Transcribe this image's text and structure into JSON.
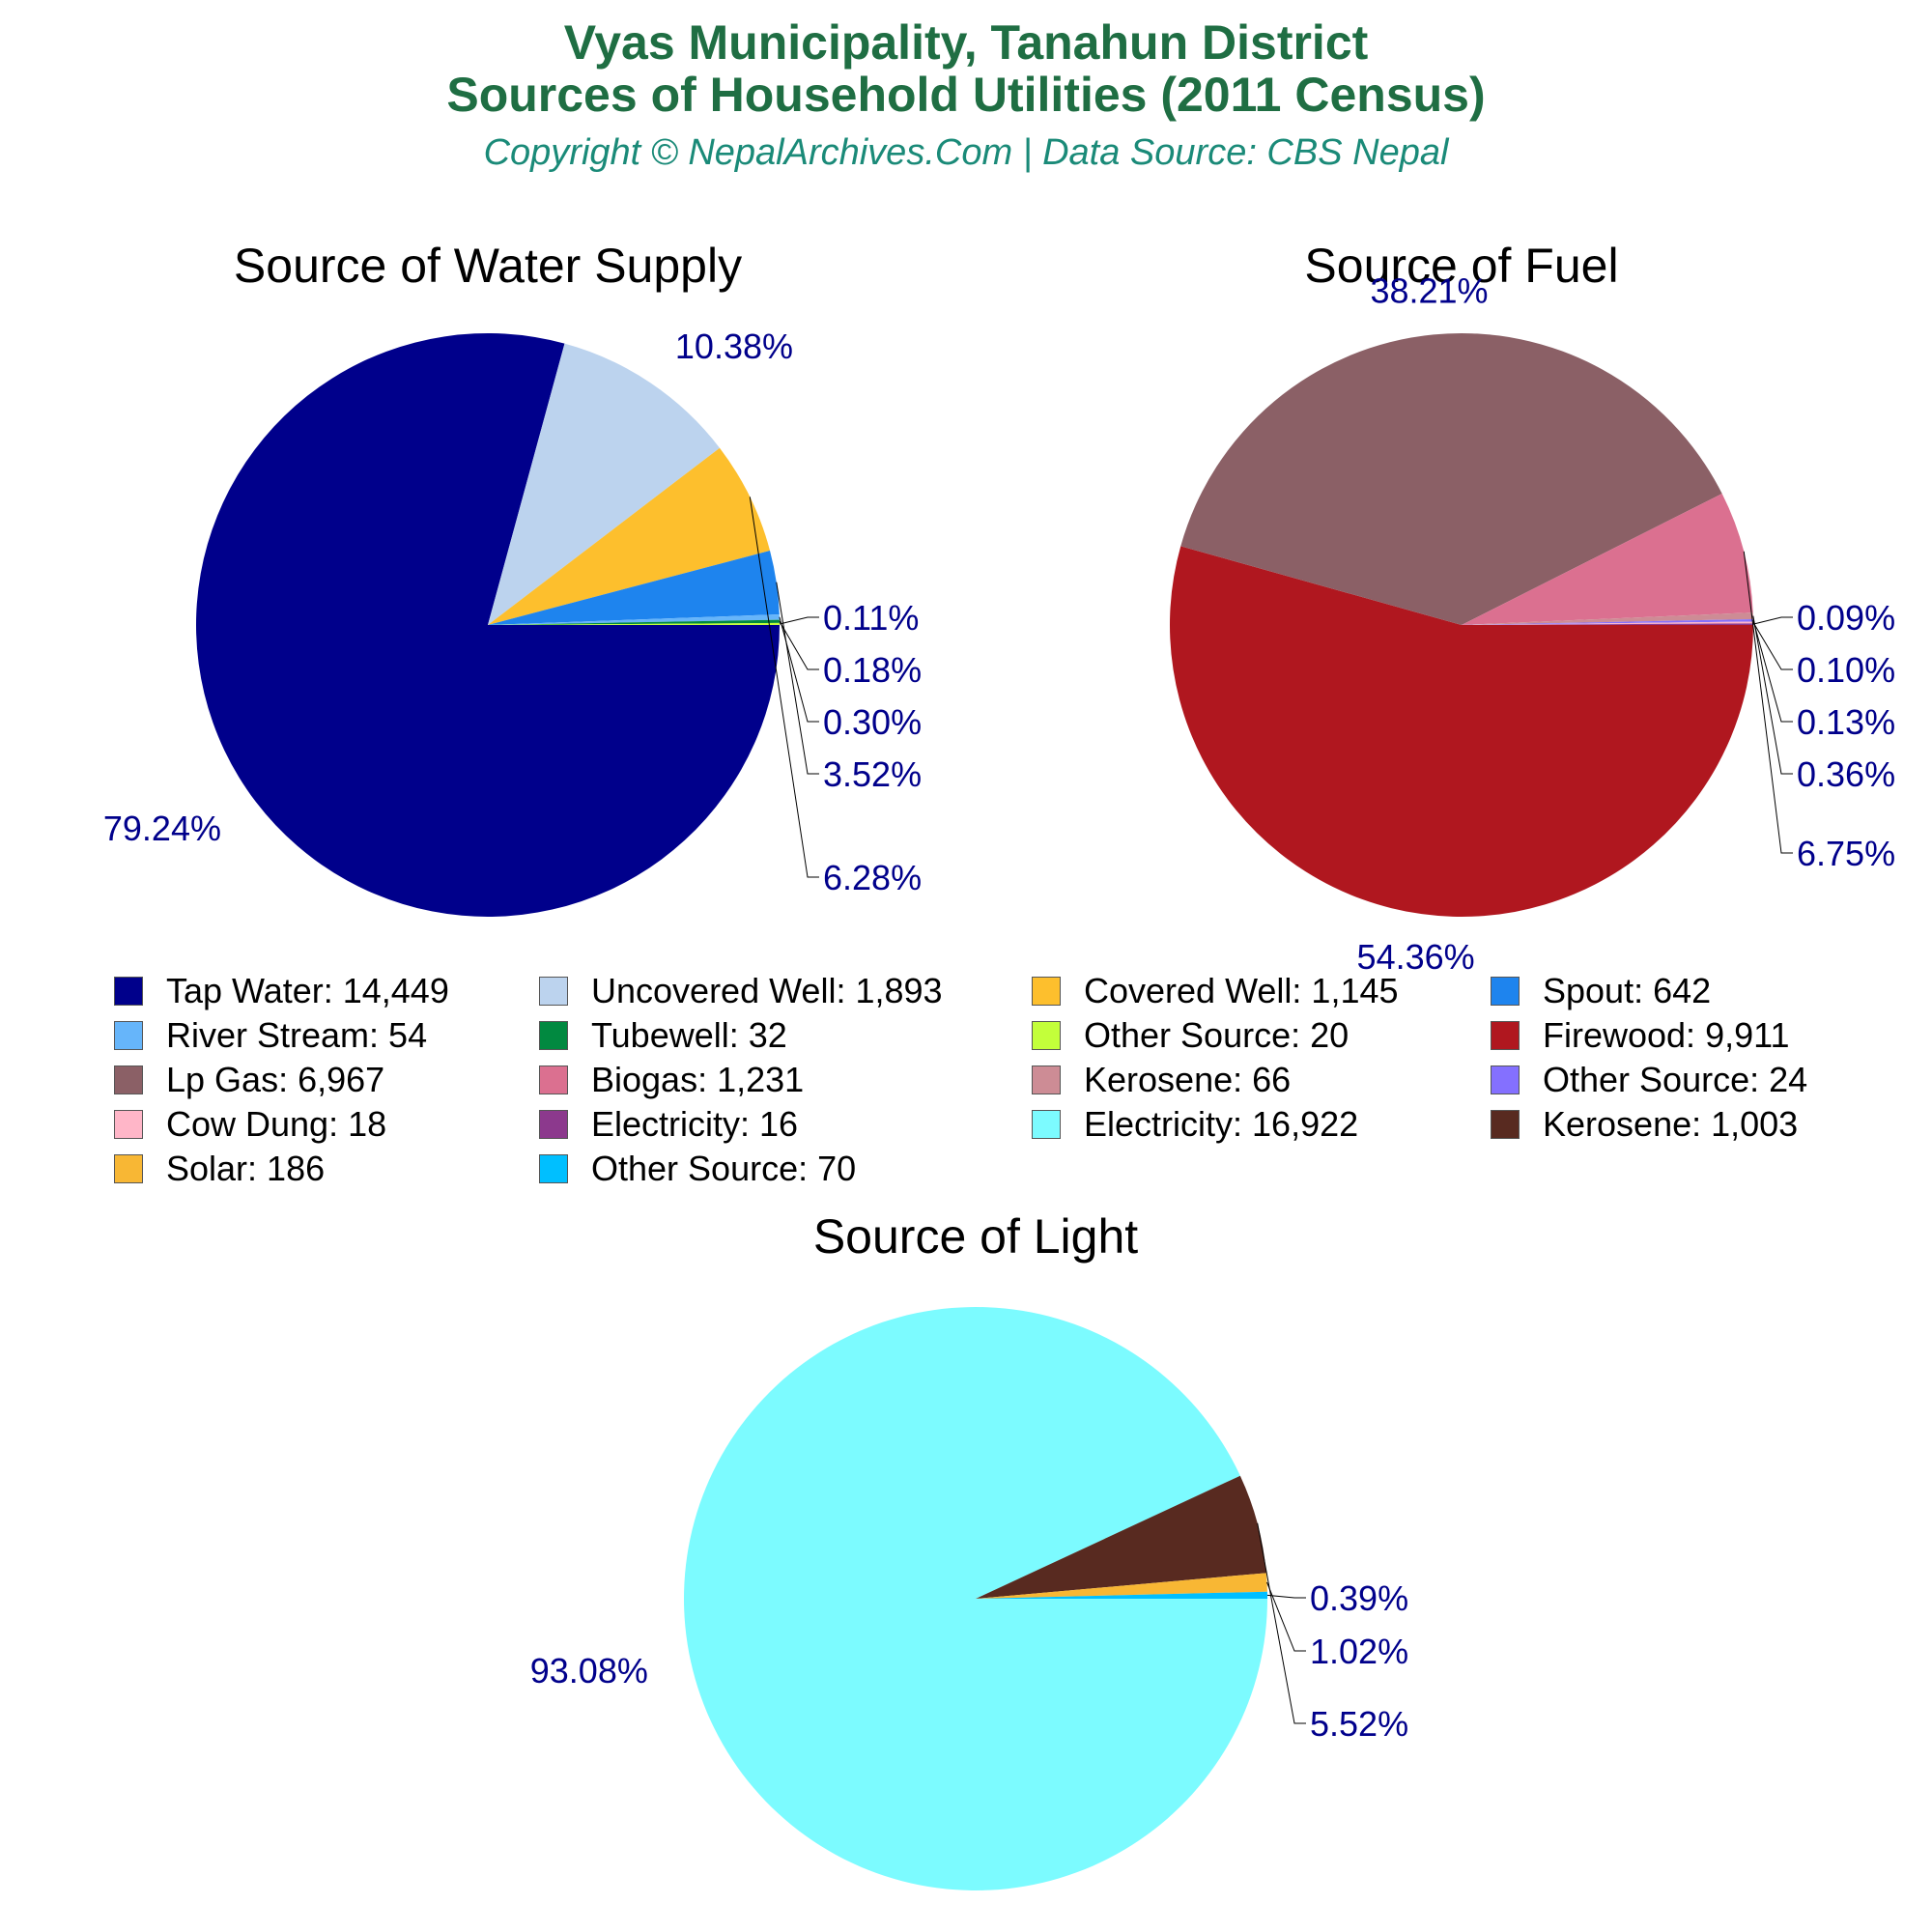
{
  "header": {
    "title_line1": "Vyas Municipality, Tanahun District",
    "title_line2": "Sources of Household Utilities (2011 Census)",
    "subtitle": "Copyright © NepalArchives.Com | Data Source: CBS Nepal"
  },
  "chart_data": [
    {
      "type": "pie",
      "title": "Source of Water Supply",
      "slices": [
        {
          "label": "Tap Water",
          "value": 14449,
          "percent_label": "79.24%",
          "color": "#00008b"
        },
        {
          "label": "Uncovered Well",
          "value": 1893,
          "percent_label": "10.38%",
          "color": "#bcd3ee"
        },
        {
          "label": "Covered Well",
          "value": 1145,
          "percent_label": "6.28%",
          "color": "#fdbf2d"
        },
        {
          "label": "Spout",
          "value": 642,
          "percent_label": "3.52%",
          "color": "#1e84ee"
        },
        {
          "label": "River Stream",
          "value": 54,
          "percent_label": "0.30%",
          "color": "#66b5fa"
        },
        {
          "label": "Tubewell",
          "value": 32,
          "percent_label": "0.18%",
          "color": "#018940"
        },
        {
          "label": "Other Source",
          "value": 20,
          "percent_label": "0.11%",
          "color": "#c3ff3a"
        }
      ]
    },
    {
      "type": "pie",
      "title": "Source of Fuel",
      "slices": [
        {
          "label": "Firewood",
          "value": 9911,
          "percent_label": "54.36%",
          "color": "#b0171f"
        },
        {
          "label": "Lp Gas",
          "value": 6967,
          "percent_label": "38.21%",
          "color": "#8b6066"
        },
        {
          "label": "Biogas",
          "value": 1231,
          "percent_label": "6.75%",
          "color": "#db7090"
        },
        {
          "label": "Kerosene",
          "value": 66,
          "percent_label": "0.36%",
          "color": "#cd8c95"
        },
        {
          "label": "Other Source",
          "value": 24,
          "percent_label": "0.13%",
          "color": "#8470ff"
        },
        {
          "label": "Cow Dung",
          "value": 18,
          "percent_label": "0.10%",
          "color": "#ffb6c8"
        },
        {
          "label": "Electricity",
          "value": 16,
          "percent_label": "0.09%",
          "color": "#8c398d"
        }
      ]
    },
    {
      "type": "pie",
      "title": "Source of Light",
      "slices": [
        {
          "label": "Electricity",
          "value": 16922,
          "percent_label": "93.08%",
          "color": "#7cfbff"
        },
        {
          "label": "Kerosene",
          "value": 1003,
          "percent_label": "5.52%",
          "color": "#582a20"
        },
        {
          "label": "Solar",
          "value": 186,
          "percent_label": "1.02%",
          "color": "#f8b734"
        },
        {
          "label": "Other Source",
          "value": 70,
          "percent_label": "0.39%",
          "color": "#00bfff"
        }
      ]
    }
  ],
  "legend": {
    "items": [
      {
        "text": "Tap Water: 14,449",
        "color": "#00008b"
      },
      {
        "text": "Uncovered Well: 1,893",
        "color": "#bcd3ee"
      },
      {
        "text": "Covered Well: 1,145",
        "color": "#fdbf2d"
      },
      {
        "text": "Spout: 642",
        "color": "#1e84ee"
      },
      {
        "text": "River Stream: 54",
        "color": "#66b5fa"
      },
      {
        "text": "Tubewell: 32",
        "color": "#018940"
      },
      {
        "text": "Other Source: 20",
        "color": "#c3ff3a"
      },
      {
        "text": "Firewood: 9,911",
        "color": "#b0171f"
      },
      {
        "text": "Lp Gas: 6,967",
        "color": "#8b6066"
      },
      {
        "text": "Biogas: 1,231",
        "color": "#db7090"
      },
      {
        "text": "Kerosene: 66",
        "color": "#cd8c95"
      },
      {
        "text": "Other Source: 24",
        "color": "#8470ff"
      },
      {
        "text": "Cow Dung: 18",
        "color": "#ffb6c8"
      },
      {
        "text": "Electricity: 16",
        "color": "#8c398d"
      },
      {
        "text": "Electricity: 16,922",
        "color": "#7cfbff"
      },
      {
        "text": "Kerosene: 1,003",
        "color": "#582a20"
      },
      {
        "text": "Solar: 186",
        "color": "#f8b734"
      },
      {
        "text": "Other Source: 70",
        "color": "#00bfff"
      }
    ]
  }
}
